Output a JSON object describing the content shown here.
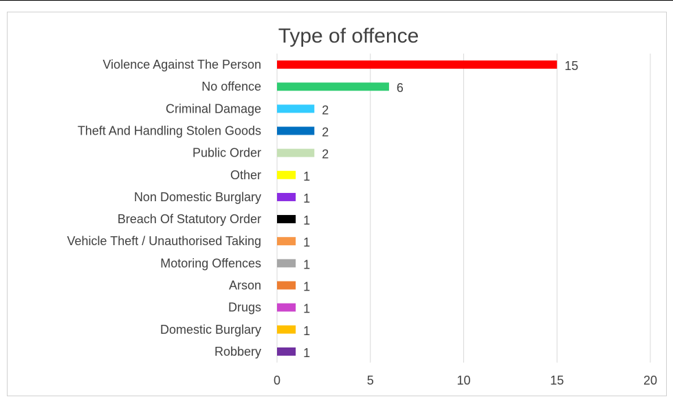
{
  "chart_data": {
    "type": "bar",
    "orientation": "horizontal",
    "title": "Type of offence",
    "xlabel": "",
    "ylabel": "",
    "xlim": [
      0,
      20
    ],
    "xticks": [
      0,
      5,
      10,
      15,
      20
    ],
    "grid": true,
    "legend": "none",
    "categories": [
      "Violence Against The Person",
      "No offence",
      "Criminal Damage",
      "Theft And Handling Stolen Goods",
      "Public Order",
      "Other",
      "Non Domestic Burglary",
      "Breach Of Statutory Order",
      "Vehicle Theft / Unauthorised Taking",
      "Motoring Offences",
      "Arson",
      "Drugs",
      "Domestic Burglary",
      "Robbery"
    ],
    "values": [
      15,
      6,
      2,
      2,
      2,
      1,
      1,
      1,
      1,
      1,
      1,
      1,
      1,
      1
    ],
    "colors": [
      "#ff0000",
      "#2ecc71",
      "#33ccff",
      "#0070c0",
      "#c5e0b4",
      "#ffff00",
      "#8a2be2",
      "#000000",
      "#f79646",
      "#a6a6a6",
      "#ed7d31",
      "#cc44cc",
      "#ffc000",
      "#7030a0"
    ]
  }
}
